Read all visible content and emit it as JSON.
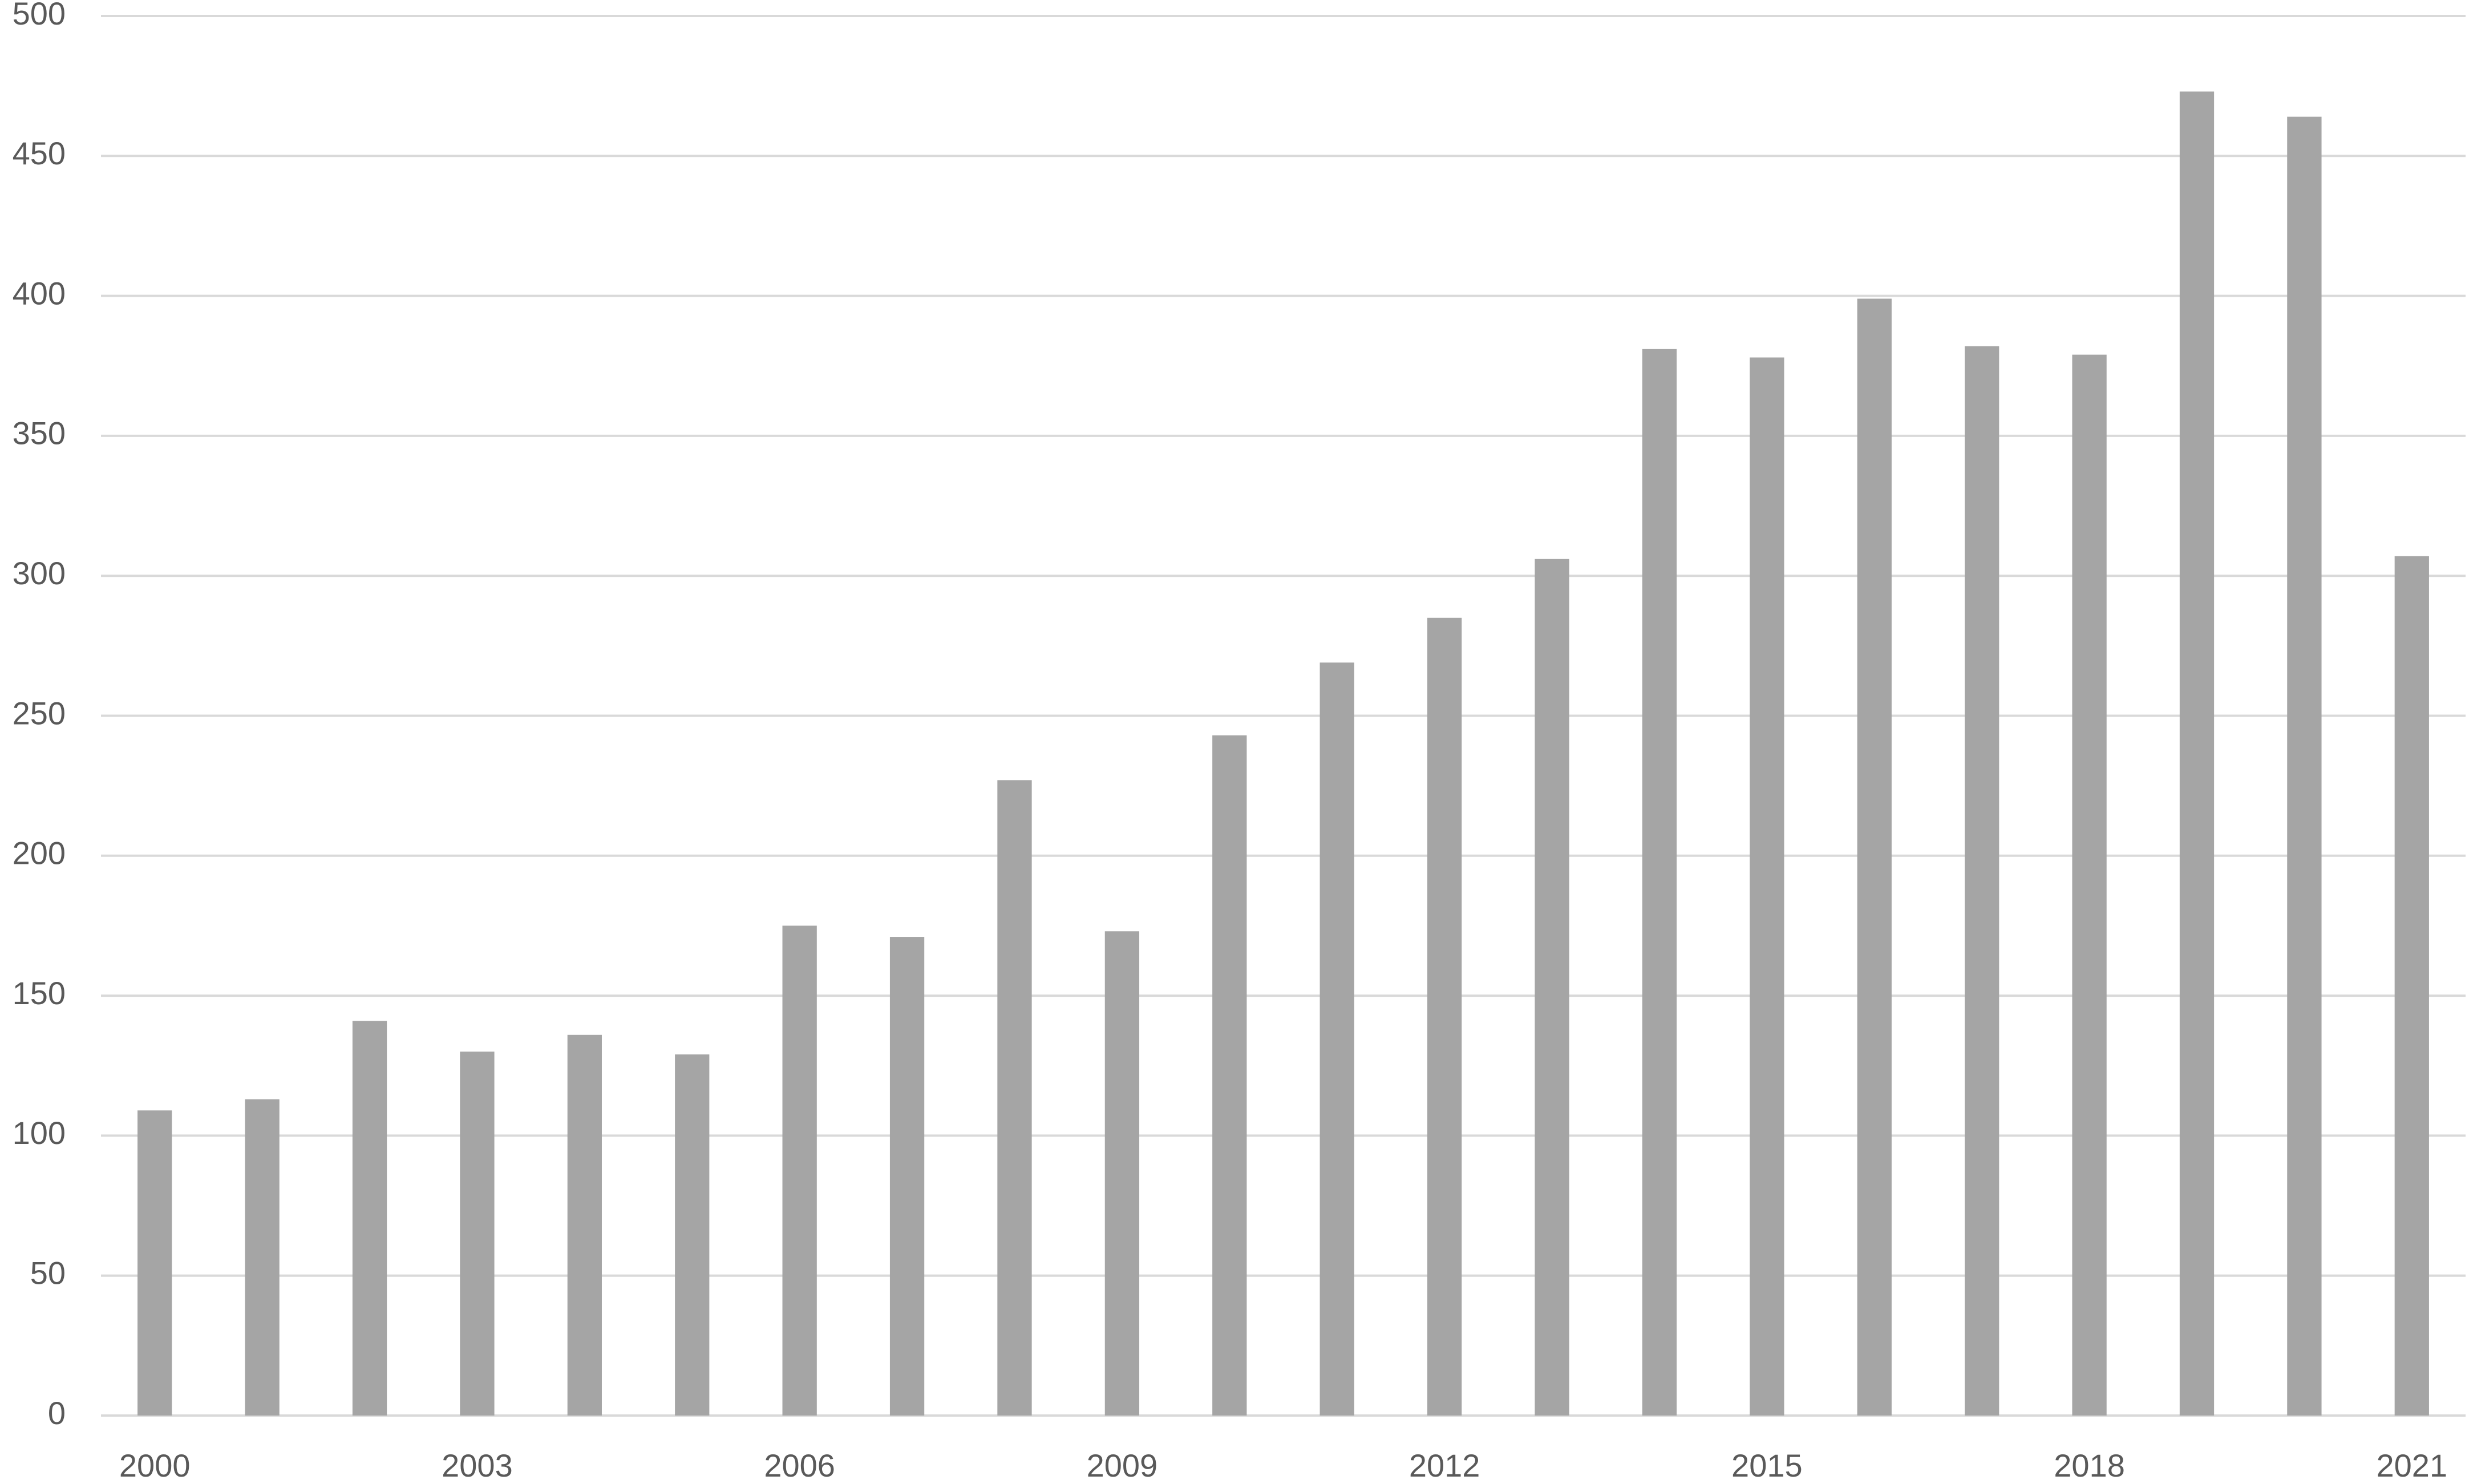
{
  "chart_data": {
    "type": "bar",
    "categories": [
      "2000",
      null,
      null,
      "2003",
      null,
      null,
      "2006",
      null,
      null,
      "2009",
      null,
      null,
      "2012",
      null,
      null,
      "2015",
      null,
      null,
      "2018",
      null,
      null,
      "2021"
    ],
    "values": [
      109,
      113,
      141,
      130,
      136,
      129,
      175,
      171,
      227,
      173,
      243,
      269,
      285,
      306,
      381,
      378,
      399,
      382,
      379,
      473,
      464,
      307
    ],
    "color": "#a5a5a5",
    "ylim": [
      0,
      500
    ],
    "yticks": [
      0,
      50,
      100,
      150,
      200,
      250,
      300,
      350,
      400,
      450,
      500
    ],
    "grid": true
  }
}
